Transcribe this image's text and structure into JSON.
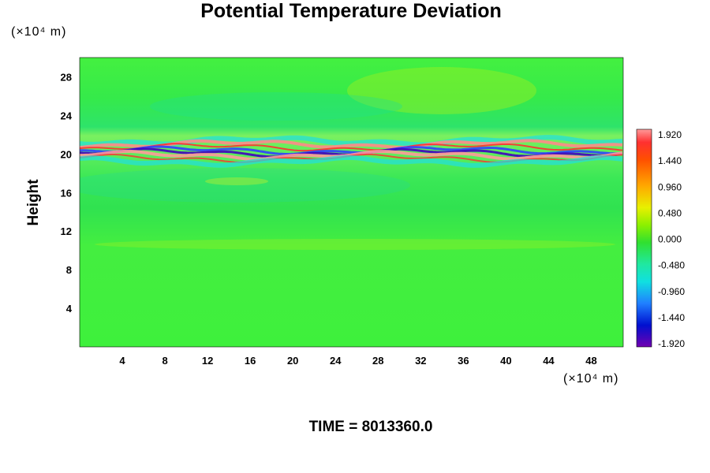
{
  "chart_data": {
    "type": "heatmap",
    "title": "Potential Temperature Deviation",
    "ylabel": "Height",
    "y_unit": "(×10⁴ m)",
    "x_unit": "(×10⁴ m)",
    "footer": "TIME = 8013360.0",
    "xlim": [
      0,
      51
    ],
    "ylim": [
      0,
      30
    ],
    "x_ticks": [
      4,
      8,
      12,
      16,
      20,
      24,
      28,
      32,
      36,
      40,
      44,
      48
    ],
    "y_ticks": [
      4,
      8,
      12,
      16,
      20,
      24,
      28
    ],
    "colorbar": {
      "labels": [
        "1.920",
        "1.440",
        "0.960",
        "0.480",
        "0.000",
        "-0.480",
        "-0.960",
        "-1.440",
        "-1.920"
      ],
      "min": -1.92,
      "max": 1.92
    },
    "colors": {
      "background_field": "#3ef13a",
      "warm_anomaly": "#ff8a8a",
      "cold_anomaly": "#4000c0"
    }
  }
}
